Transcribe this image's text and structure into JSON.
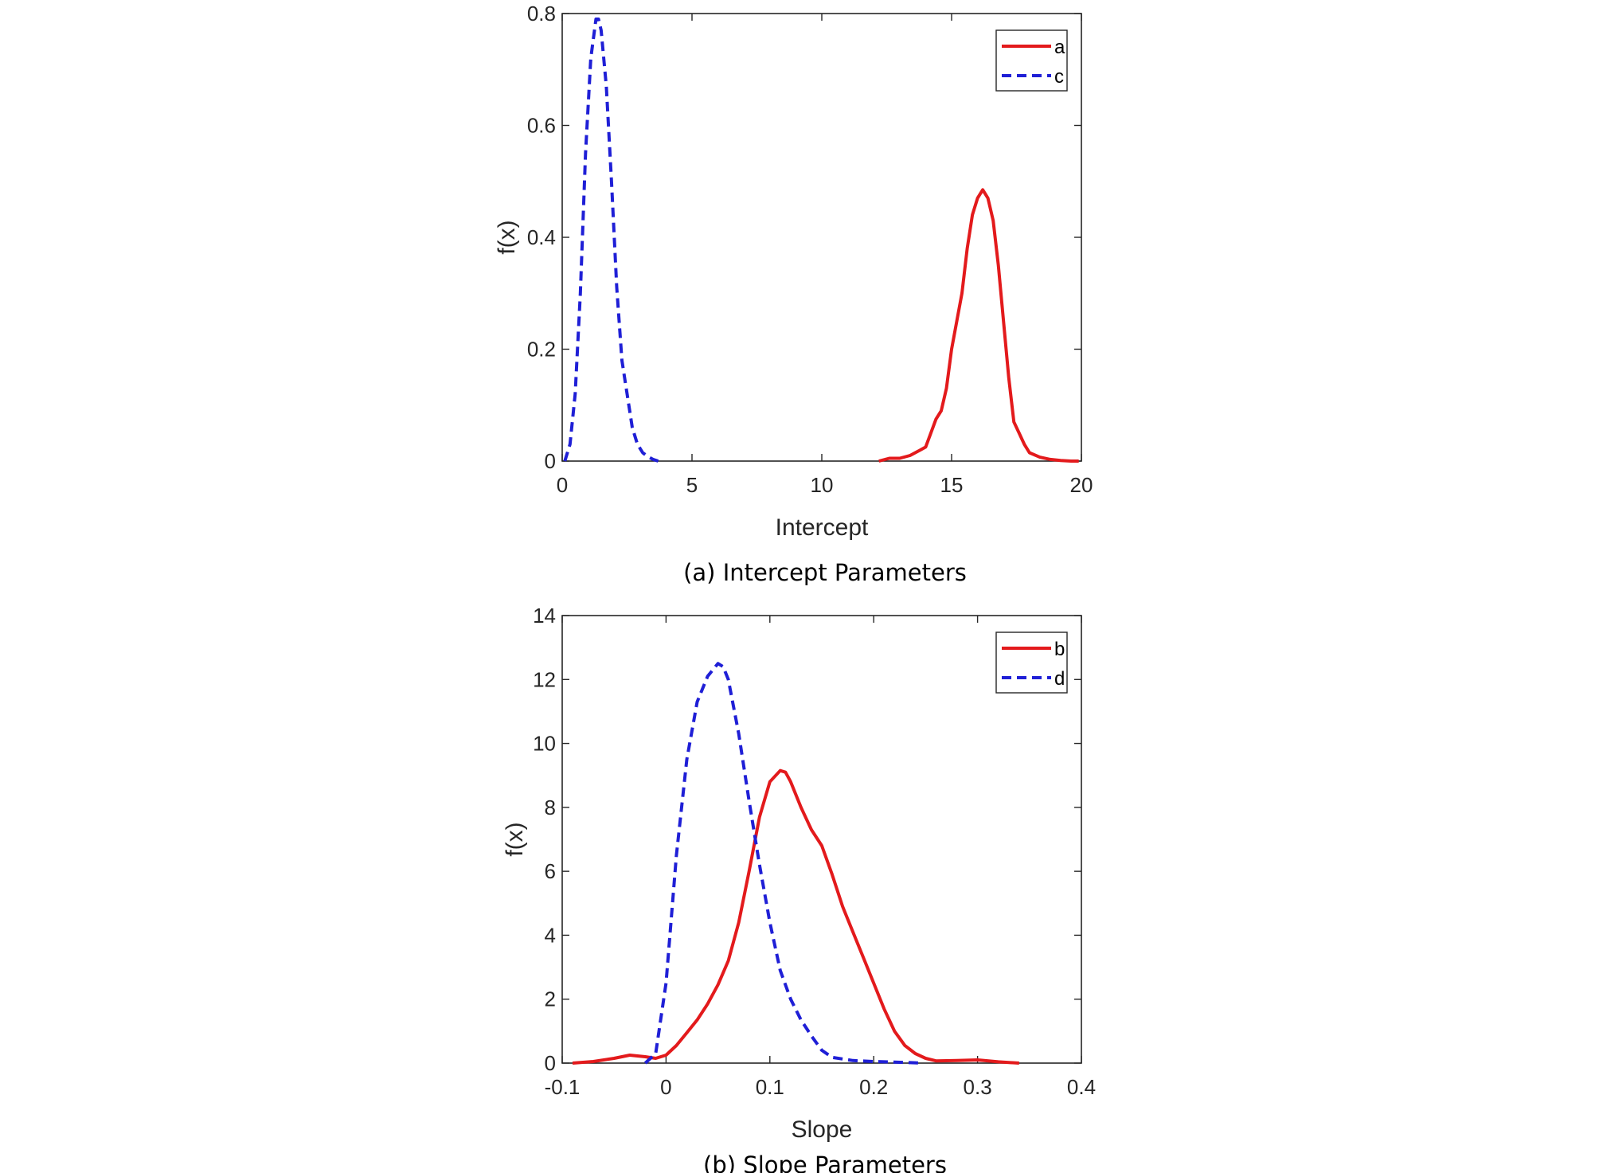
{
  "chart_data": [
    {
      "type": "line",
      "caption": "(a) Intercept Parameters",
      "xlabel": "Intercept",
      "ylabel": "f(x)",
      "xlim": [
        0,
        20
      ],
      "ylim": [
        0,
        0.8
      ],
      "xticks": [
        0,
        5,
        10,
        15,
        20
      ],
      "yticks": [
        0,
        0.2,
        0.4,
        0.6,
        0.8
      ],
      "xtick_labels": [
        "0",
        "5",
        "10",
        "15",
        "20"
      ],
      "ytick_labels": [
        "0",
        "0.2",
        "0.4",
        "0.6",
        "0.8"
      ],
      "grid": false,
      "legend_position": "top-right",
      "series": [
        {
          "name": "a",
          "color": "#e31a1c",
          "style": "solid",
          "x": [
            12.2,
            12.6,
            13.0,
            13.4,
            13.8,
            14.0,
            14.2,
            14.4,
            14.6,
            14.8,
            15.0,
            15.2,
            15.4,
            15.6,
            15.8,
            16.0,
            16.2,
            16.4,
            16.6,
            16.8,
            17.0,
            17.2,
            17.4,
            17.6,
            17.8,
            18.0,
            18.4,
            18.8,
            19.2,
            19.6,
            19.9
          ],
          "y": [
            0.0,
            0.005,
            0.005,
            0.01,
            0.02,
            0.025,
            0.05,
            0.075,
            0.09,
            0.13,
            0.2,
            0.25,
            0.3,
            0.38,
            0.44,
            0.47,
            0.485,
            0.47,
            0.43,
            0.35,
            0.25,
            0.15,
            0.07,
            0.05,
            0.03,
            0.015,
            0.007,
            0.003,
            0.001,
            0.0,
            0.0
          ]
        },
        {
          "name": "c",
          "color": "#1f1fd6",
          "style": "dashed",
          "x": [
            0.1,
            0.3,
            0.5,
            0.7,
            0.9,
            1.1,
            1.3,
            1.4,
            1.5,
            1.7,
            1.9,
            2.1,
            2.3,
            2.5,
            2.7,
            2.9,
            3.1,
            3.3,
            3.5,
            3.7
          ],
          "y": [
            0.0,
            0.03,
            0.12,
            0.3,
            0.55,
            0.72,
            0.79,
            0.79,
            0.77,
            0.67,
            0.5,
            0.31,
            0.18,
            0.12,
            0.06,
            0.03,
            0.015,
            0.008,
            0.003,
            0.0
          ]
        }
      ]
    },
    {
      "type": "line",
      "caption": "(b) Slope Parameters",
      "xlabel": "Slope",
      "ylabel": "f(x)",
      "xlim": [
        -0.1,
        0.4
      ],
      "ylim": [
        0,
        14
      ],
      "xticks": [
        -0.1,
        0,
        0.1,
        0.2,
        0.3,
        0.4
      ],
      "yticks": [
        0,
        2,
        4,
        6,
        8,
        10,
        12,
        14
      ],
      "xtick_labels": [
        "-0.1",
        "0",
        "0.1",
        "0.2",
        "0.3",
        "0.4"
      ],
      "ytick_labels": [
        "0",
        "2",
        "4",
        "6",
        "8",
        "10",
        "12",
        "14"
      ],
      "grid": false,
      "legend_position": "top-right",
      "series": [
        {
          "name": "b",
          "color": "#e31a1c",
          "style": "solid",
          "x": [
            -0.09,
            -0.07,
            -0.05,
            -0.035,
            -0.02,
            -0.01,
            0.0,
            0.01,
            0.02,
            0.03,
            0.04,
            0.05,
            0.06,
            0.07,
            0.08,
            0.09,
            0.1,
            0.11,
            0.115,
            0.12,
            0.13,
            0.14,
            0.15,
            0.16,
            0.17,
            0.18,
            0.19,
            0.2,
            0.21,
            0.22,
            0.23,
            0.24,
            0.25,
            0.26,
            0.28,
            0.3,
            0.32,
            0.34
          ],
          "y": [
            0.0,
            0.05,
            0.15,
            0.25,
            0.2,
            0.15,
            0.25,
            0.55,
            0.95,
            1.35,
            1.85,
            2.45,
            3.2,
            4.4,
            6.0,
            7.7,
            8.8,
            9.15,
            9.1,
            8.8,
            8.0,
            7.3,
            6.8,
            5.9,
            4.9,
            4.1,
            3.3,
            2.5,
            1.7,
            1.0,
            0.55,
            0.3,
            0.15,
            0.07,
            0.08,
            0.1,
            0.04,
            0.0
          ]
        },
        {
          "name": "d",
          "color": "#1f1fd6",
          "style": "dashed",
          "x": [
            -0.02,
            -0.01,
            0.0,
            0.01,
            0.02,
            0.03,
            0.04,
            0.05,
            0.055,
            0.06,
            0.07,
            0.08,
            0.09,
            0.1,
            0.11,
            0.12,
            0.13,
            0.14,
            0.15,
            0.16,
            0.18,
            0.2,
            0.22,
            0.24,
            0.245
          ],
          "y": [
            0.0,
            0.3,
            2.5,
            6.5,
            9.5,
            11.3,
            12.1,
            12.5,
            12.4,
            12.0,
            10.3,
            8.2,
            6.2,
            4.4,
            2.9,
            2.0,
            1.35,
            0.85,
            0.4,
            0.18,
            0.08,
            0.05,
            0.03,
            0.01,
            0.0
          ]
        }
      ]
    }
  ]
}
